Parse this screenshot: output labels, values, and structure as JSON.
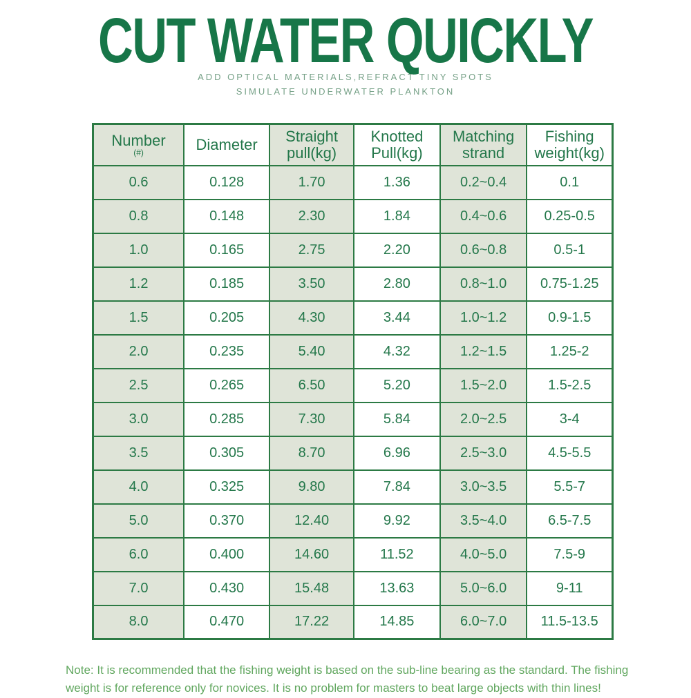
{
  "page": {
    "title": "CUT WATER QUICKLY",
    "subtitle_line1": "ADD OPTICAL MATERIALS,REFRACT TINY SPOTS",
    "subtitle_line2": "SIMULATE UNDERWATER PLANKTON",
    "note": "Note: It is recommended that the fishing weight is based on the sub-line bearing as the standard. The fishing weight is for reference only for novices. It is no problem for masters to beat large objects with thin lines!"
  },
  "colors": {
    "title_green": "#177648",
    "subtitle_green": "#76a187",
    "table_border_green": "#2c7a44",
    "table_text_green": "#23774a",
    "cell_shade": "#dfe4d8",
    "weight_column_green": "#4ba057",
    "note_green": "#61a75f"
  },
  "table": {
    "columns": [
      {
        "key": "number",
        "label": "Number",
        "sub": "(#)"
      },
      {
        "key": "diameter",
        "label": "Diameter"
      },
      {
        "key": "straight_pull",
        "label": "Straight pull(kg)"
      },
      {
        "key": "knotted_pull",
        "label": "Knotted Pull(kg)"
      },
      {
        "key": "matching_strand",
        "label": "Matching strand"
      },
      {
        "key": "fishing_weight",
        "label": "Fishing weight(kg)"
      }
    ],
    "column_widths": [
      "17.5%",
      "16.5%",
      "16.2%",
      "16.6%",
      "16.7%",
      "16.5%"
    ],
    "rows": [
      [
        "0.6",
        "0.128",
        "1.70",
        "1.36",
        "0.2~0.4",
        "0.1"
      ],
      [
        "0.8",
        "0.148",
        "2.30",
        "1.84",
        "0.4~0.6",
        "0.25-0.5"
      ],
      [
        "1.0",
        "0.165",
        "2.75",
        "2.20",
        "0.6~0.8",
        "0.5-1"
      ],
      [
        "1.2",
        "0.185",
        "3.50",
        "2.80",
        "0.8~1.0",
        "0.75-1.25"
      ],
      [
        "1.5",
        "0.205",
        "4.30",
        "3.44",
        "1.0~1.2",
        "0.9-1.5"
      ],
      [
        "2.0",
        "0.235",
        "5.40",
        "4.32",
        "1.2~1.5",
        "1.25-2"
      ],
      [
        "2.5",
        "0.265",
        "6.50",
        "5.20",
        "1.5~2.0",
        "1.5-2.5"
      ],
      [
        "3.0",
        "0.285",
        "7.30",
        "5.84",
        "2.0~2.5",
        "3-4"
      ],
      [
        "3.5",
        "0.305",
        "8.70",
        "6.96",
        "2.5~3.0",
        "4.5-5.5"
      ],
      [
        "4.0",
        "0.325",
        "9.80",
        "7.84",
        "3.0~3.5",
        "5.5-7"
      ],
      [
        "5.0",
        "0.370",
        "12.40",
        "9.92",
        "3.5~4.0",
        "6.5-7.5"
      ],
      [
        "6.0",
        "0.400",
        "14.60",
        "11.52",
        "4.0~5.0",
        "7.5-9"
      ],
      [
        "7.0",
        "0.430",
        "15.48",
        "13.63",
        "5.0~6.0",
        "9-11"
      ],
      [
        "8.0",
        "0.470",
        "17.22",
        "14.85",
        "6.0~7.0",
        "11.5-13.5"
      ]
    ]
  }
}
